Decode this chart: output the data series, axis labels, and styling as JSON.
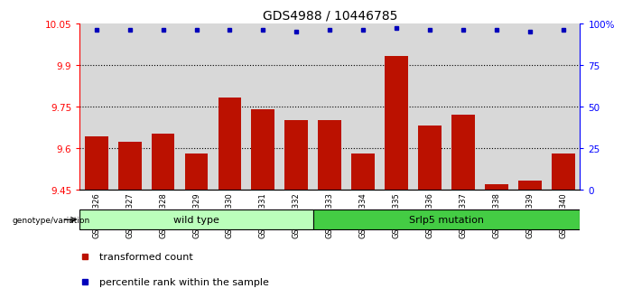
{
  "title": "GDS4988 / 10446785",
  "samples": [
    "GSM921326",
    "GSM921327",
    "GSM921328",
    "GSM921329",
    "GSM921330",
    "GSM921331",
    "GSM921332",
    "GSM921333",
    "GSM921334",
    "GSM921335",
    "GSM921336",
    "GSM921337",
    "GSM921338",
    "GSM921339",
    "GSM921340"
  ],
  "transformed_counts": [
    9.64,
    9.62,
    9.65,
    9.58,
    9.78,
    9.74,
    9.7,
    9.7,
    9.58,
    9.93,
    9.68,
    9.72,
    9.47,
    9.48,
    9.58
  ],
  "percentile_ranks": [
    96,
    96,
    96,
    96,
    96,
    96,
    95,
    96,
    96,
    97,
    96,
    96,
    96,
    95,
    96
  ],
  "ymin": 9.45,
  "ymax": 10.05,
  "yticks": [
    9.45,
    9.6,
    9.75,
    9.9,
    10.05
  ],
  "ytick_labels": [
    "9.45",
    "9.6",
    "9.75",
    "9.9",
    "10.05"
  ],
  "right_yticks_frac": [
    0.0,
    0.4167,
    0.8333,
    1.25,
    1.6667
  ],
  "right_ytick_labels": [
    "0",
    "25",
    "50",
    "75",
    "100%"
  ],
  "dotted_lines": [
    9.6,
    9.75,
    9.9
  ],
  "bar_color": "#bb1100",
  "dot_color": "#0000bb",
  "background_color": "#d8d8d8",
  "wild_type_count": 7,
  "mut_count": 8,
  "group_labels": [
    "wild type",
    "Srlp5 mutation"
  ],
  "wt_color": "#bbffbb",
  "mut_color": "#44cc44",
  "legend_items": [
    "transformed count",
    "percentile rank within the sample"
  ],
  "title_fontsize": 10,
  "tick_fontsize": 7.5,
  "label_fontsize": 8
}
